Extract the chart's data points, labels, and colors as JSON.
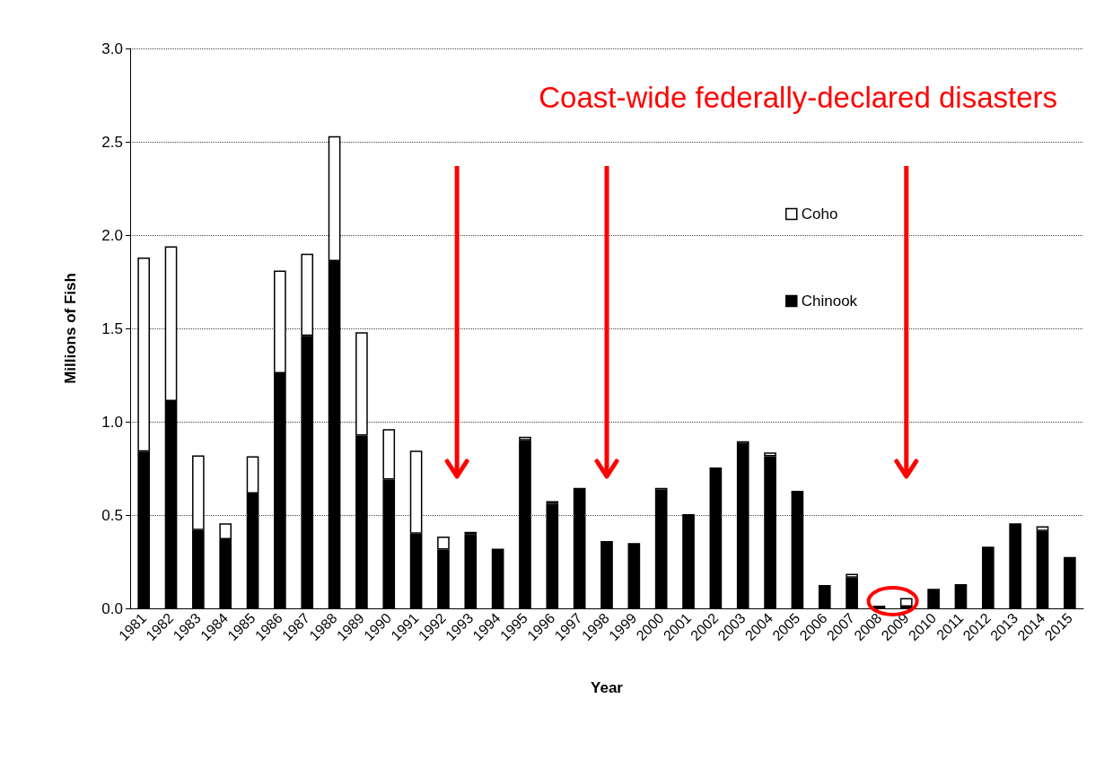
{
  "chart_data": {
    "type": "bar",
    "stacked": true,
    "xlabel": "Year",
    "ylabel": "Millions of Fish",
    "annotations": [
      "Coast-wide federally-declared disasters"
    ],
    "categories": [
      "1981",
      "1982",
      "1983",
      "1984",
      "1985",
      "1986",
      "1987",
      "1988",
      "1989",
      "1990",
      "1991",
      "1992",
      "1993",
      "1994",
      "1995",
      "1996",
      "1997",
      "1998",
      "1999",
      "2000",
      "2001",
      "2002",
      "2003",
      "2004",
      "2005",
      "2006",
      "2007",
      "2008",
      "2009",
      "2010",
      "2011",
      "2012",
      "2013",
      "2014",
      "2015"
    ],
    "series": [
      {
        "name": "Chinook",
        "color": "#000000",
        "values": [
          0.84,
          1.11,
          0.42,
          0.37,
          0.615,
          1.26,
          1.46,
          1.86,
          0.925,
          0.69,
          0.4,
          0.315,
          0.395,
          0.32,
          0.9,
          0.56,
          0.645,
          0.36,
          0.35,
          0.63,
          0.495,
          0.755,
          0.88,
          0.815,
          0.63,
          0.125,
          0.165,
          0.015,
          0.01,
          0.105,
          0.13,
          0.33,
          0.455,
          0.415,
          0.275
        ]
      },
      {
        "name": "Coho",
        "color": "#ffffff",
        "values": [
          1.04,
          0.83,
          0.4,
          0.085,
          0.2,
          0.55,
          0.44,
          0.67,
          0.555,
          0.27,
          0.445,
          0.07,
          0.015,
          null,
          0.02,
          0.015,
          null,
          null,
          null,
          0.015,
          0.01,
          null,
          0.015,
          0.02,
          null,
          null,
          0.02,
          null,
          0.045,
          null,
          null,
          null,
          null,
          0.025,
          null
        ]
      }
    ],
    "ylim": [
      0,
      3
    ],
    "yticks": [
      {
        "value": 0,
        "label": "0.0"
      },
      0.5,
      {
        "value": 1,
        "label": "1.0"
      },
      1.5,
      {
        "value": 2,
        "label": "2.0"
      },
      2.5,
      {
        "value": 3,
        "label": "3.0"
      }
    ],
    "grid": "y",
    "legend": "top right"
  }
}
